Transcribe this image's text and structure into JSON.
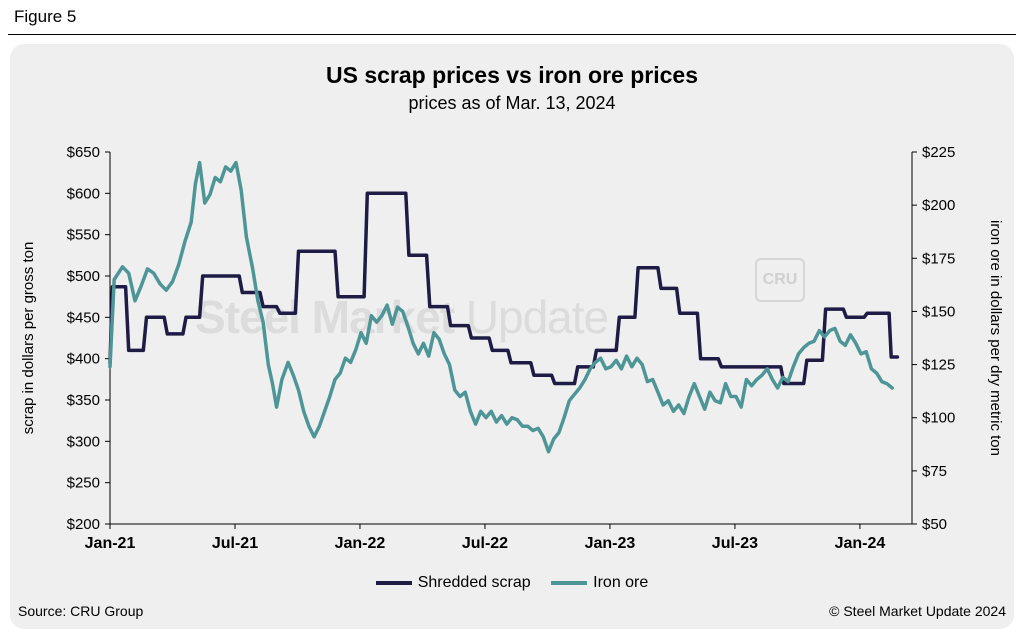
{
  "figure_label": "Figure 5",
  "source": "Source: CRU Group",
  "copyright": "© Steel Market Update 2024",
  "watermark": {
    "bold": "Steel Market",
    "light": "Update",
    "badge": "CRU"
  },
  "colors": {
    "scrap": "#1e1b45",
    "ore": "#4e9597",
    "grid": "#000000"
  },
  "chart_data": {
    "type": "line",
    "title": "US scrap prices vs iron ore prices",
    "subtitle": "prices as of Mar. 13, 2024",
    "ylabel_left": "scrap in dollars per gross ton",
    "ylabel_right": "iron ore in dollars per dry metric ton",
    "ylim_left": [
      200,
      650
    ],
    "ylim_right": [
      50,
      225
    ],
    "yticks_left": [
      "$200",
      "$250",
      "$300",
      "$350",
      "$400",
      "$450",
      "$500",
      "$550",
      "$600",
      "$650"
    ],
    "yticks_right": [
      "$50",
      "$75",
      "$100",
      "$125",
      "$150",
      "$175",
      "$200",
      "$225"
    ],
    "xlim": [
      0,
      38.5
    ],
    "xticks": [
      {
        "label": "Jan-21",
        "month": 0
      },
      {
        "label": "Jul-21",
        "month": 6
      },
      {
        "label": "Jan-22",
        "month": 12
      },
      {
        "label": "Jul-22",
        "month": 18
      },
      {
        "label": "Jan-23",
        "month": 24
      },
      {
        "label": "Jul-23",
        "month": 30
      },
      {
        "label": "Jan-24",
        "month": 36
      }
    ],
    "legend_position": "bottom",
    "series": [
      {
        "name": "Shredded scrap",
        "axis": "left",
        "points": [
          [
            0,
            395
          ],
          [
            0.12,
            487
          ],
          [
            0.75,
            487
          ],
          [
            0.9,
            410
          ],
          [
            1.6,
            410
          ],
          [
            1.75,
            450
          ],
          [
            2.6,
            450
          ],
          [
            2.75,
            430
          ],
          [
            3.5,
            430
          ],
          [
            3.65,
            450
          ],
          [
            4.3,
            450
          ],
          [
            4.45,
            500
          ],
          [
            6.2,
            500
          ],
          [
            6.35,
            480
          ],
          [
            7.2,
            480
          ],
          [
            7.35,
            463
          ],
          [
            8,
            463
          ],
          [
            8.15,
            455
          ],
          [
            8.9,
            455
          ],
          [
            9.05,
            530
          ],
          [
            10.8,
            530
          ],
          [
            10.95,
            475
          ],
          [
            12.2,
            475
          ],
          [
            12.35,
            600
          ],
          [
            14.2,
            600
          ],
          [
            14.35,
            525
          ],
          [
            15.2,
            525
          ],
          [
            15.35,
            463
          ],
          [
            16.2,
            463
          ],
          [
            16.35,
            440
          ],
          [
            17.2,
            440
          ],
          [
            17.35,
            425
          ],
          [
            18.2,
            425
          ],
          [
            18.35,
            410
          ],
          [
            19.1,
            410
          ],
          [
            19.25,
            395
          ],
          [
            20.2,
            395
          ],
          [
            20.35,
            380
          ],
          [
            21.2,
            380
          ],
          [
            21.35,
            370
          ],
          [
            22.3,
            370
          ],
          [
            22.45,
            390
          ],
          [
            23.2,
            390
          ],
          [
            23.35,
            410
          ],
          [
            24.3,
            410
          ],
          [
            24.45,
            450
          ],
          [
            25.2,
            450
          ],
          [
            25.35,
            510
          ],
          [
            26.3,
            510
          ],
          [
            26.45,
            485
          ],
          [
            27.2,
            485
          ],
          [
            27.35,
            455
          ],
          [
            28.2,
            455
          ],
          [
            28.35,
            400
          ],
          [
            29.2,
            400
          ],
          [
            29.35,
            390
          ],
          [
            32.2,
            390
          ],
          [
            32.35,
            370
          ],
          [
            33.3,
            370
          ],
          [
            33.45,
            398
          ],
          [
            34.2,
            398
          ],
          [
            34.35,
            460
          ],
          [
            35.2,
            460
          ],
          [
            35.35,
            450
          ],
          [
            36.2,
            450
          ],
          [
            36.35,
            455
          ],
          [
            37.4,
            455
          ],
          [
            37.5,
            402
          ],
          [
            37.8,
            402
          ]
        ]
      },
      {
        "name": "Iron ore",
        "axis": "right",
        "points": [
          [
            0,
            124
          ],
          [
            0.2,
            165
          ],
          [
            0.6,
            171
          ],
          [
            0.9,
            168
          ],
          [
            1.2,
            155
          ],
          [
            1.5,
            162
          ],
          [
            1.8,
            170
          ],
          [
            2.1,
            168
          ],
          [
            2.4,
            163
          ],
          [
            2.7,
            160
          ],
          [
            3,
            164
          ],
          [
            3.3,
            172
          ],
          [
            3.6,
            183
          ],
          [
            3.9,
            192
          ],
          [
            4.1,
            210
          ],
          [
            4.3,
            220
          ],
          [
            4.55,
            201
          ],
          [
            4.8,
            205
          ],
          [
            5.05,
            213
          ],
          [
            5.3,
            211
          ],
          [
            5.55,
            218
          ],
          [
            5.8,
            216
          ],
          [
            6.05,
            220
          ],
          [
            6.3,
            207
          ],
          [
            6.55,
            185
          ],
          [
            6.85,
            170
          ],
          [
            7.1,
            155
          ],
          [
            7.35,
            145
          ],
          [
            7.6,
            125
          ],
          [
            7.8,
            116
          ],
          [
            8,
            105
          ],
          [
            8.25,
            118
          ],
          [
            8.55,
            126
          ],
          [
            8.8,
            120
          ],
          [
            9.05,
            113
          ],
          [
            9.3,
            103
          ],
          [
            9.55,
            96
          ],
          [
            9.8,
            91
          ],
          [
            10.05,
            96
          ],
          [
            10.3,
            103
          ],
          [
            10.55,
            110
          ],
          [
            10.8,
            118
          ],
          [
            11.05,
            121
          ],
          [
            11.3,
            128
          ],
          [
            11.55,
            126
          ],
          [
            11.8,
            132
          ],
          [
            12.05,
            140
          ],
          [
            12.3,
            135
          ],
          [
            12.55,
            148
          ],
          [
            12.8,
            145
          ],
          [
            13.05,
            148
          ],
          [
            13.3,
            153
          ],
          [
            13.55,
            144
          ],
          [
            13.8,
            152
          ],
          [
            14.05,
            150
          ],
          [
            14.3,
            143
          ],
          [
            14.55,
            135
          ],
          [
            14.8,
            130
          ],
          [
            15.05,
            135
          ],
          [
            15.3,
            129
          ],
          [
            15.55,
            140
          ],
          [
            15.8,
            137
          ],
          [
            16.05,
            130
          ],
          [
            16.3,
            125
          ],
          [
            16.55,
            113
          ],
          [
            16.8,
            110
          ],
          [
            17.05,
            112
          ],
          [
            17.3,
            103
          ],
          [
            17.55,
            97
          ],
          [
            17.8,
            103
          ],
          [
            18.05,
            100
          ],
          [
            18.3,
            103
          ],
          [
            18.55,
            98
          ],
          [
            18.8,
            101
          ],
          [
            19.05,
            97
          ],
          [
            19.3,
            100
          ],
          [
            19.55,
            99
          ],
          [
            19.8,
            96
          ],
          [
            20.05,
            96
          ],
          [
            20.3,
            94
          ],
          [
            20.55,
            95
          ],
          [
            20.8,
            91
          ],
          [
            21.05,
            84
          ],
          [
            21.3,
            90
          ],
          [
            21.55,
            93
          ],
          [
            21.8,
            100
          ],
          [
            22.05,
            108
          ],
          [
            22.3,
            111
          ],
          [
            22.55,
            114
          ],
          [
            22.8,
            118
          ],
          [
            23.05,
            123
          ],
          [
            23.3,
            126
          ],
          [
            23.55,
            128
          ],
          [
            23.8,
            123
          ],
          [
            24.05,
            124
          ],
          [
            24.3,
            127
          ],
          [
            24.55,
            123
          ],
          [
            24.8,
            129
          ],
          [
            25.05,
            124
          ],
          [
            25.3,
            128
          ],
          [
            25.55,
            125
          ],
          [
            25.8,
            117
          ],
          [
            26.05,
            118
          ],
          [
            26.3,
            112
          ],
          [
            26.55,
            106
          ],
          [
            26.8,
            108
          ],
          [
            27.05,
            103
          ],
          [
            27.3,
            106
          ],
          [
            27.55,
            102
          ],
          [
            27.8,
            110
          ],
          [
            28.05,
            116
          ],
          [
            28.3,
            110
          ],
          [
            28.55,
            104
          ],
          [
            28.8,
            112
          ],
          [
            29.05,
            108
          ],
          [
            29.3,
            107
          ],
          [
            29.55,
            116
          ],
          [
            29.8,
            110
          ],
          [
            30.05,
            110
          ],
          [
            30.3,
            105
          ],
          [
            30.55,
            118
          ],
          [
            30.8,
            115
          ],
          [
            31.05,
            118
          ],
          [
            31.3,
            120
          ],
          [
            31.55,
            123
          ],
          [
            31.8,
            118
          ],
          [
            32.05,
            114
          ],
          [
            32.3,
            119
          ],
          [
            32.55,
            117
          ],
          [
            32.8,
            124
          ],
          [
            33.05,
            130
          ],
          [
            33.3,
            133
          ],
          [
            33.55,
            135
          ],
          [
            33.8,
            136
          ],
          [
            34.05,
            141
          ],
          [
            34.3,
            138
          ],
          [
            34.55,
            141
          ],
          [
            34.8,
            142
          ],
          [
            35.05,
            136
          ],
          [
            35.3,
            134
          ],
          [
            35.55,
            139
          ],
          [
            35.8,
            135
          ],
          [
            36.05,
            130
          ],
          [
            36.3,
            131
          ],
          [
            36.55,
            123
          ],
          [
            36.8,
            121
          ],
          [
            37.05,
            117
          ],
          [
            37.3,
            116
          ],
          [
            37.55,
            114
          ]
        ]
      }
    ]
  }
}
